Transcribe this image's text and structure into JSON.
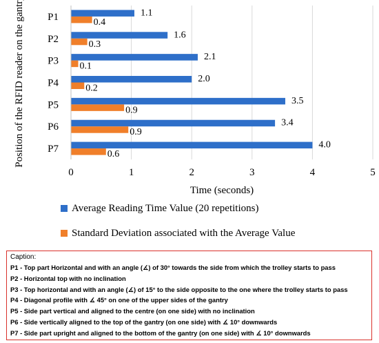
{
  "chart_data": {
    "type": "bar",
    "orientation": "horizontal",
    "categories": [
      "P1",
      "P2",
      "P3",
      "P4",
      "P5",
      "P6",
      "P7"
    ],
    "series": [
      {
        "name": "Average Reading Time Value (20 repetitions)",
        "color": "#2e6fc9",
        "values": [
          1.05,
          1.6,
          2.1,
          2.0,
          3.55,
          3.38,
          4.0
        ],
        "labels": [
          "1.1",
          "1.6",
          "2.1",
          "2.0",
          "3.5",
          "3.4",
          "4.0"
        ]
      },
      {
        "name": "Standard Deviation associated with the Average Value",
        "color": "#f07f2a",
        "values": [
          0.35,
          0.27,
          0.12,
          0.22,
          0.88,
          0.95,
          0.58
        ],
        "labels": [
          "0.4",
          "0.3",
          "0.1",
          "0.2",
          "0.9",
          "0.9",
          "0.6"
        ]
      }
    ],
    "xlabel": "Time (seconds)",
    "ylabel": "Position of the RFID reader on the gantry",
    "xlim": [
      0,
      5
    ],
    "xticks": [
      "0",
      "1",
      "2",
      "3",
      "4",
      "5"
    ],
    "grid": true,
    "legend_position": "bottom"
  },
  "caption": {
    "title": "Caption:",
    "lines": [
      "P1 - Top part Horizontal and with an angle (∡) of 30° towards the side from which the trolley starts to pass",
      "P2 - Horizontal top with no inclination",
      "P3 - Top horizontal and with an angle (∡) of 15° to the side opposite to the one where the trolley starts to pass",
      "P4 - Diagonal profile with ∡ 45° on one of the upper sides of the gantry",
      "P5 - Side part vertical and aligned to the centre (on one side) with no inclination",
      "P6 - Side vertically aligned to the top of the gantry (on one side) with ∡ 10° downwards",
      "P7 - Side part upright and aligned to the bottom of the gantry (on one side) with ∡ 10° downwards"
    ]
  }
}
